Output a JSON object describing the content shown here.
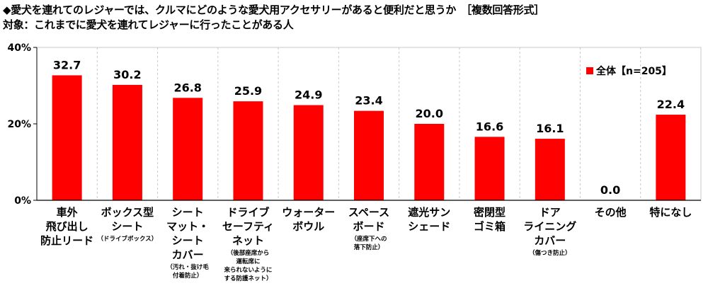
{
  "title": "◆愛犬を連れてのレジャーでは、クルマにどのような愛犬用アクセサリーがあると便利だと思うか　［複数回答形式］",
  "subtitle": "対象：これまでに愛犬を連れてレジャーに行ったことがある人",
  "colors": {
    "bar": "#ff0000",
    "grid": "#c8c8c8",
    "axis": "#000000"
  },
  "chart_data": {
    "type": "bar",
    "ylim": [
      0,
      40
    ],
    "yticks": [
      "0%",
      "20%",
      "40%"
    ],
    "ytick_values": [
      0,
      20,
      40
    ],
    "grid": "vertical-dashed",
    "legend_position": "top-right",
    "series": [
      {
        "name": "全体【n=205】",
        "values": [
          32.7,
          30.2,
          26.8,
          25.9,
          24.9,
          23.4,
          20.0,
          16.6,
          16.1,
          0.0,
          22.4
        ],
        "labels": [
          "32.7",
          "30.2",
          "26.8",
          "25.9",
          "24.9",
          "23.4",
          "20.0",
          "16.6",
          "16.1",
          "0.0",
          "22.4"
        ]
      }
    ],
    "categories": [
      {
        "lines": [
          "車外",
          "飛び出し",
          "防止リード"
        ],
        "notes": []
      },
      {
        "lines": [
          "ボックス型",
          "シート"
        ],
        "notes": [
          "（ドライブボックス）"
        ]
      },
      {
        "lines": [
          "シート",
          "マット・",
          "シート",
          "カバー"
        ],
        "notes": [
          "（汚れ・抜け毛",
          "付着防止）"
        ]
      },
      {
        "lines": [
          "ドライブ",
          "セーフティ",
          "ネット"
        ],
        "notes": [
          "（後部座席から",
          "運転席に",
          "来られないように",
          "する防護ネット）"
        ]
      },
      {
        "lines": [
          "ウォーター",
          "ボウル"
        ],
        "notes": []
      },
      {
        "lines": [
          "スペース",
          "ボード"
        ],
        "notes": [
          "（座席下への",
          "落下防止）"
        ]
      },
      {
        "lines": [
          "遮光サン",
          "シェード"
        ],
        "notes": []
      },
      {
        "lines": [
          "密閉型",
          "ゴミ箱"
        ],
        "notes": []
      },
      {
        "lines": [
          "ドア",
          "ライニング",
          "カバー"
        ],
        "notes": [
          "（傷つき防止）"
        ]
      },
      {
        "lines": [
          "その他"
        ],
        "notes": []
      },
      {
        "lines": [
          "特になし"
        ],
        "notes": []
      }
    ]
  }
}
